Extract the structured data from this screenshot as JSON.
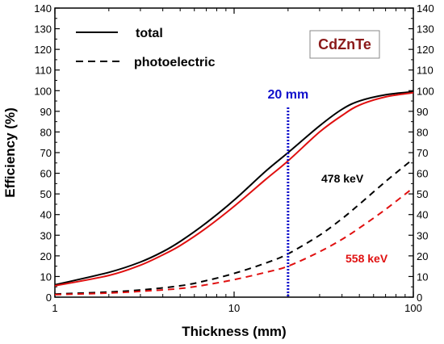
{
  "chart_data": {
    "type": "line",
    "xlabel": "Thickness (mm)",
    "ylabel": "Efficiency (%)",
    "xscale": "log",
    "xlim": [
      1,
      100
    ],
    "ylim": [
      0,
      140
    ],
    "x_ticks": [
      1,
      10,
      100
    ],
    "x_tick_labels": [
      "1",
      "10",
      "100"
    ],
    "y_ticks": [
      0,
      10,
      20,
      30,
      40,
      50,
      60,
      70,
      80,
      90,
      100,
      110,
      120,
      130,
      140
    ],
    "y_tick_labels": [
      "0",
      "10",
      "20",
      "30",
      "40",
      "50",
      "60",
      "70",
      "80",
      "90",
      "100",
      "110",
      "120",
      "130",
      "140"
    ],
    "right_axis_mirrored": true,
    "grid": false,
    "legend_position": "top-left",
    "legend": [
      {
        "label": "total",
        "style": "solid"
      },
      {
        "label": "photoelectric",
        "style": "dashed"
      }
    ],
    "material_label": "CdZnTe",
    "marker_line": {
      "x": 20,
      "label": "20 mm",
      "color": "#1010cc"
    },
    "annotations": [
      {
        "text": "478 keV",
        "color": "#000000"
      },
      {
        "text": "558 keV",
        "color": "#e01010"
      }
    ],
    "colors": {
      "energy_478": "#000000",
      "energy_558": "#e01010",
      "marker": "#1010cc",
      "material_text": "#8b1a1a"
    },
    "series": [
      {
        "energy": "478 keV",
        "kind": "total",
        "color": "#000000",
        "dash": "solid",
        "x": [
          1,
          2,
          3,
          4,
          5,
          7,
          10,
          15,
          20,
          30,
          40,
          50,
          70,
          100
        ],
        "y": [
          6,
          12,
          17,
          22,
          27,
          36,
          47,
          61,
          70,
          83,
          91,
          95,
          98,
          99.5
        ]
      },
      {
        "energy": "558 keV",
        "kind": "total",
        "color": "#e01010",
        "dash": "solid",
        "x": [
          1,
          2,
          3,
          4,
          5,
          7,
          10,
          15,
          20,
          30,
          40,
          50,
          70,
          100
        ],
        "y": [
          5.5,
          10.5,
          15.5,
          20.5,
          25,
          33.5,
          44,
          57,
          66,
          80,
          88,
          93,
          97,
          99
        ]
      },
      {
        "energy": "478 keV",
        "kind": "photoelectric",
        "color": "#000000",
        "dash": "dashed",
        "x": [
          1,
          2,
          3,
          5,
          7,
          10,
          15,
          20,
          30,
          40,
          50,
          70,
          100
        ],
        "y": [
          1.5,
          2.5,
          3.5,
          5.5,
          8,
          11.5,
          16.5,
          21,
          30,
          38,
          45,
          56,
          67
        ]
      },
      {
        "energy": "558 keV",
        "kind": "photoelectric",
        "color": "#e01010",
        "dash": "dashed",
        "x": [
          1,
          2,
          3,
          5,
          7,
          10,
          15,
          20,
          30,
          40,
          50,
          70,
          100
        ],
        "y": [
          1.2,
          2,
          2.8,
          4.2,
          6,
          8.5,
          12,
          15,
          22,
          28,
          33.5,
          42.5,
          53
        ]
      }
    ]
  }
}
